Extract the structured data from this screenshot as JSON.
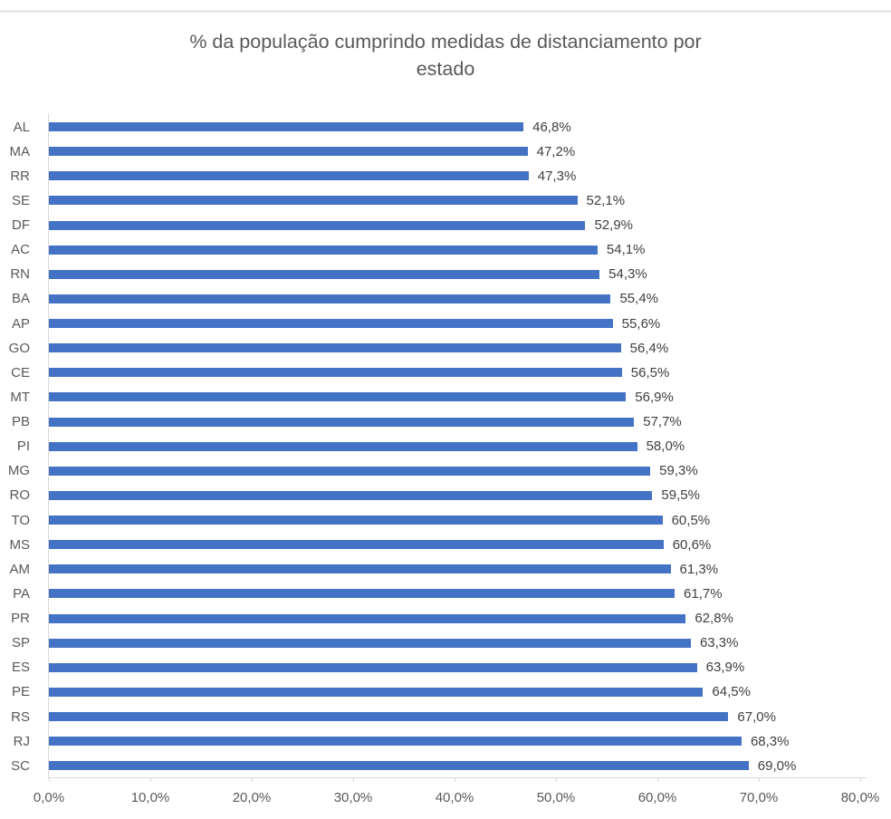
{
  "chart_data": {
    "type": "bar",
    "orientation": "horizontal",
    "title": "% da população cumprindo medidas de distanciamento por estado",
    "title_lines": [
      "% da população cumprindo medidas de distanciamento por",
      "estado"
    ],
    "categories": [
      "AL",
      "MA",
      "RR",
      "SE",
      "DF",
      "AC",
      "RN",
      "BA",
      "AP",
      "GO",
      "CE",
      "MT",
      "PB",
      "PI",
      "MG",
      "RO",
      "TO",
      "MS",
      "AM",
      "PA",
      "PR",
      "SP",
      "ES",
      "PE",
      "RS",
      "RJ",
      "SC"
    ],
    "values": [
      46.8,
      47.2,
      47.3,
      52.1,
      52.9,
      54.1,
      54.3,
      55.4,
      55.6,
      56.4,
      56.5,
      56.9,
      57.7,
      58.0,
      59.3,
      59.5,
      60.5,
      60.6,
      61.3,
      61.7,
      62.8,
      63.3,
      63.9,
      64.5,
      67.0,
      68.3,
      69.0
    ],
    "value_labels": [
      "46,8%",
      "47,2%",
      "47,3%",
      "52,1%",
      "52,9%",
      "54,1%",
      "54,3%",
      "55,4%",
      "55,6%",
      "56,4%",
      "56,5%",
      "56,9%",
      "57,7%",
      "58,0%",
      "59,3%",
      "59,5%",
      "60,5%",
      "60,6%",
      "61,3%",
      "61,7%",
      "62,8%",
      "63,3%",
      "63,9%",
      "64,5%",
      "67,0%",
      "68,3%",
      "69,0%"
    ],
    "x_ticks": [
      "0,0%",
      "10,0%",
      "20,0%",
      "30,0%",
      "40,0%",
      "50,0%",
      "60,0%",
      "70,0%",
      "80,0%"
    ],
    "xlim": [
      0,
      80
    ],
    "grid": false,
    "legend": "none",
    "xlabel": "",
    "ylabel": "",
    "bar_color": "#4472C4",
    "axis_color": "#D9D9D9",
    "category_label_color": "#595959",
    "value_label_color": "#404040",
    "title_color": "#595959"
  }
}
